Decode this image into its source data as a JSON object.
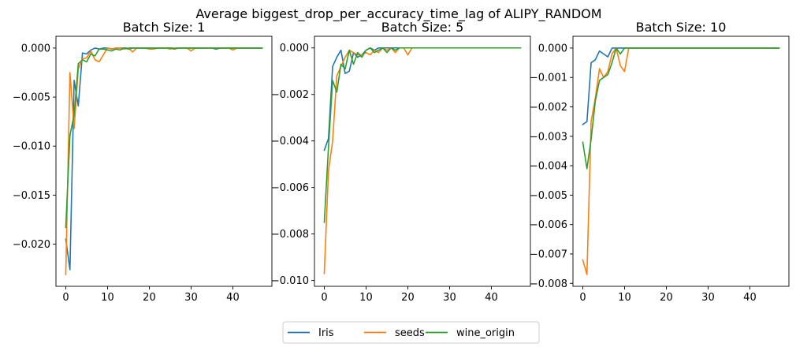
{
  "suptitle": "Average biggest_drop_per_accuracy_time_lag of ALIPY_RANDOM",
  "legend": {
    "placement": "bottom-center",
    "entries": [
      {
        "name": "Iris",
        "color": "#1f77b4"
      },
      {
        "name": "seeds",
        "color": "#ff7f0e"
      },
      {
        "name": "wine_origin",
        "color": "#2ca02c"
      }
    ]
  },
  "chart_data": [
    {
      "type": "line",
      "title": "Batch Size: 1",
      "xlim": [
        -2.35,
        49.35
      ],
      "ylim": [
        -0.0243,
        0.0012
      ],
      "xticks": [
        0,
        10,
        20,
        30,
        40
      ],
      "xtick_labels": [
        "0",
        "10",
        "20",
        "30",
        "40"
      ],
      "yticks": [
        0.0,
        -0.005,
        -0.01,
        -0.015,
        -0.02
      ],
      "ytick_labels": [
        "0.000",
        "−0.005",
        "−0.010",
        "−0.015",
        "−0.020"
      ],
      "grid": false,
      "series": [
        {
          "name": "Iris",
          "color": "#1f77b4",
          "values": [
            -0.0195,
            -0.0226,
            -0.0033,
            -0.0059,
            -0.0005,
            -0.0006,
            -0.0002,
            0.0,
            -0.0001,
            0.0,
            0.0,
            -0.0001,
            0.0,
            0.0,
            0.0,
            0.0,
            0.0,
            0.0,
            0.0,
            0.0,
            0.0,
            0.0,
            0.0,
            0.0,
            0.0,
            0.0,
            0.0,
            0.0,
            0.0,
            0.0,
            0.0,
            0.0,
            0.0,
            0.0,
            0.0,
            0.0,
            -0.0001,
            0.0,
            0.0,
            0.0,
            0.0,
            0.0,
            0.0,
            0.0,
            0.0,
            0.0,
            0.0,
            0.0
          ]
        },
        {
          "name": "seeds",
          "color": "#ff7f0e",
          "values": [
            -0.0231,
            -0.0025,
            -0.0082,
            -0.0021,
            -0.0011,
            -0.001,
            -0.0003,
            -0.0012,
            -0.0014,
            -0.0007,
            0.0,
            -0.0001,
            0.0,
            0.0,
            -0.0001,
            0.0,
            -0.0004,
            0.0,
            0.0,
            0.0,
            -0.0001,
            -0.0001,
            0.0,
            0.0,
            0.0,
            -0.0001,
            0.0,
            0.0,
            0.0,
            0.0,
            -0.0003,
            0.0,
            0.0,
            0.0,
            0.0,
            0.0,
            0.0,
            0.0,
            0.0,
            0.0,
            -0.0002,
            0.0,
            0.0,
            0.0,
            0.0,
            0.0,
            0.0,
            0.0
          ]
        },
        {
          "name": "wine_origin",
          "color": "#2ca02c",
          "values": [
            -0.0183,
            -0.0089,
            -0.0068,
            -0.0016,
            -0.0012,
            -0.0014,
            -0.0006,
            -0.0008,
            -0.0001,
            -0.0001,
            -0.0002,
            -0.0003,
            -0.0001,
            -0.0002,
            0.0,
            -0.0001,
            0.0,
            0.0,
            0.0,
            0.0,
            0.0,
            0.0,
            0.0,
            0.0,
            0.0,
            0.0,
            -0.0001,
            0.0,
            0.0,
            0.0,
            0.0,
            0.0,
            0.0,
            0.0,
            0.0,
            0.0,
            0.0,
            0.0,
            0.0,
            0.0,
            0.0,
            0.0,
            0.0,
            0.0,
            0.0,
            0.0,
            0.0,
            0.0
          ]
        }
      ]
    },
    {
      "type": "line",
      "title": "Batch Size: 5",
      "xlim": [
        -2.35,
        49.35
      ],
      "ylim": [
        -0.01025,
        0.0005
      ],
      "xticks": [
        0,
        10,
        20,
        30,
        40
      ],
      "xtick_labels": [
        "0",
        "10",
        "20",
        "30",
        "40"
      ],
      "yticks": [
        0.0,
        -0.002,
        -0.004,
        -0.006,
        -0.008,
        -0.01
      ],
      "ytick_labels": [
        "0.000",
        "−0.002",
        "−0.004",
        "−0.006",
        "−0.008",
        "−0.010"
      ],
      "grid": false,
      "series": [
        {
          "name": "Iris",
          "color": "#1f77b4",
          "values": [
            -0.0044,
            -0.0039,
            -0.0008,
            -0.0004,
            -0.0001,
            -0.0011,
            -0.001,
            -0.0002,
            -0.0004,
            -0.0003,
            -0.0001,
            0.0,
            -0.0001,
            0.0,
            0.0,
            0.0,
            0.0,
            0.0,
            0.0,
            0.0,
            0.0,
            0.0,
            0.0,
            0.0,
            0.0,
            0.0,
            0.0,
            0.0,
            0.0,
            0.0,
            0.0,
            0.0,
            0.0,
            0.0,
            0.0,
            0.0,
            0.0,
            0.0,
            0.0,
            0.0,
            0.0,
            0.0,
            0.0,
            0.0,
            0.0,
            0.0,
            0.0,
            0.0
          ]
        },
        {
          "name": "seeds",
          "color": "#ff7f0e",
          "values": [
            -0.0097,
            -0.0053,
            -0.004,
            -0.0012,
            -0.0008,
            -0.0004,
            -0.0001,
            -0.0002,
            -0.0003,
            -0.0003,
            -0.0002,
            -0.0003,
            -0.0001,
            -0.0002,
            0.0,
            -0.0001,
            0.0,
            -0.0002,
            0.0,
            0.0,
            -0.0003,
            0.0,
            0.0,
            0.0,
            0.0,
            0.0,
            0.0,
            0.0,
            0.0,
            0.0,
            0.0,
            0.0,
            0.0,
            0.0,
            0.0,
            0.0,
            0.0,
            0.0,
            0.0,
            0.0,
            0.0,
            0.0,
            0.0,
            0.0,
            0.0,
            0.0,
            0.0,
            0.0
          ]
        },
        {
          "name": "wine_origin",
          "color": "#2ca02c",
          "values": [
            -0.0075,
            -0.0043,
            -0.0014,
            -0.0019,
            -0.0007,
            -0.0009,
            -0.0001,
            -0.0007,
            -0.0002,
            -0.0004,
            -0.0001,
            0.0,
            -0.0002,
            -0.0001,
            0.0,
            -0.0002,
            0.0,
            -0.0001,
            0.0,
            0.0,
            0.0,
            0.0,
            0.0,
            0.0,
            0.0,
            0.0,
            0.0,
            0.0,
            0.0,
            0.0,
            0.0,
            0.0,
            0.0,
            0.0,
            0.0,
            0.0,
            0.0,
            0.0,
            0.0,
            0.0,
            0.0,
            0.0,
            0.0,
            0.0,
            0.0,
            0.0,
            0.0,
            0.0
          ]
        }
      ]
    },
    {
      "type": "line",
      "title": "Batch Size: 10",
      "xlim": [
        -2.35,
        49.35
      ],
      "ylim": [
        -0.0081,
        0.0004
      ],
      "xticks": [
        0,
        10,
        20,
        30,
        40
      ],
      "xtick_labels": [
        "0",
        "10",
        "20",
        "30",
        "40"
      ],
      "yticks": [
        0.0,
        -0.001,
        -0.002,
        -0.003,
        -0.004,
        -0.005,
        -0.006,
        -0.007,
        -0.008
      ],
      "ytick_labels": [
        "0.000",
        "−0.001",
        "−0.002",
        "−0.003",
        "−0.004",
        "−0.005",
        "−0.006",
        "−0.007",
        "−0.008"
      ],
      "grid": false,
      "series": [
        {
          "name": "Iris",
          "color": "#1f77b4",
          "values": [
            -0.0026,
            -0.0025,
            -0.0005,
            -0.0004,
            -0.0001,
            -0.0002,
            -0.0003,
            0.0,
            0.0,
            0.0,
            0.0,
            0.0,
            0.0,
            0.0,
            0.0,
            0.0,
            0.0,
            0.0,
            0.0,
            0.0,
            0.0,
            0.0,
            0.0,
            0.0,
            0.0,
            0.0,
            0.0,
            0.0,
            0.0,
            0.0,
            0.0,
            0.0,
            0.0,
            0.0,
            0.0,
            0.0,
            0.0,
            0.0,
            0.0,
            0.0,
            0.0,
            0.0,
            0.0,
            0.0,
            0.0,
            0.0,
            0.0,
            0.0
          ]
        },
        {
          "name": "seeds",
          "color": "#ff7f0e",
          "values": [
            -0.0072,
            -0.0077,
            -0.0025,
            -0.0017,
            -0.0007,
            -0.001,
            -0.0008,
            -0.0002,
            0.0,
            -0.0006,
            -0.0008,
            0.0,
            0.0,
            0.0,
            0.0,
            0.0,
            0.0,
            0.0,
            0.0,
            0.0,
            0.0,
            0.0,
            0.0,
            0.0,
            0.0,
            0.0,
            0.0,
            0.0,
            0.0,
            0.0,
            0.0,
            0.0,
            0.0,
            0.0,
            0.0,
            0.0,
            0.0,
            0.0,
            0.0,
            0.0,
            0.0,
            0.0,
            0.0,
            0.0,
            0.0,
            0.0,
            0.0,
            0.0
          ]
        },
        {
          "name": "wine_origin",
          "color": "#2ca02c",
          "values": [
            -0.0032,
            -0.0041,
            -0.0031,
            -0.0018,
            -0.0011,
            -0.001,
            -0.0009,
            -0.0005,
            0.0,
            -0.0002,
            0.0,
            0.0,
            0.0,
            0.0,
            0.0,
            0.0,
            0.0,
            0.0,
            0.0,
            0.0,
            0.0,
            0.0,
            0.0,
            0.0,
            0.0,
            0.0,
            0.0,
            0.0,
            0.0,
            0.0,
            0.0,
            0.0,
            0.0,
            0.0,
            0.0,
            0.0,
            0.0,
            0.0,
            0.0,
            0.0,
            0.0,
            0.0,
            0.0,
            0.0,
            0.0,
            0.0,
            0.0,
            0.0
          ]
        }
      ]
    }
  ]
}
